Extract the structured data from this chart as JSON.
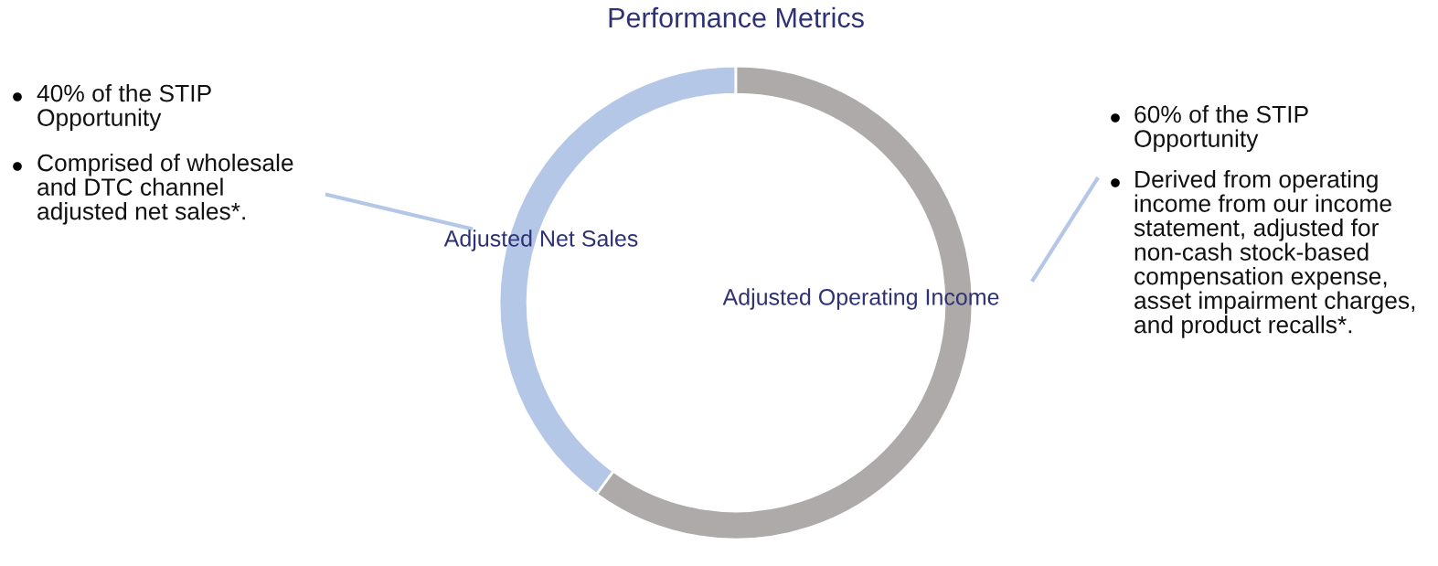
{
  "chart_data": {
    "type": "donut",
    "title": "Performance Metrics",
    "categories": [
      "Adjusted Net Sales",
      "Adjusted Operating Income"
    ],
    "values": [
      40,
      60
    ],
    "colors": [
      "#b4c7e7",
      "#aeaaaa"
    ],
    "annotations": [
      "40% of the STIP\nOpportunity",
      "Comprised of wholesale\nand DTC channel\nadjusted net sales*.",
      "60% of the STIP\nOpportunity",
      "Derived from operating\nincome from our income\nstatement, adjusted for\nnon-cash stock-based\ncompensation expense,\nasset impairment charges,\nand product recalls*."
    ]
  }
}
